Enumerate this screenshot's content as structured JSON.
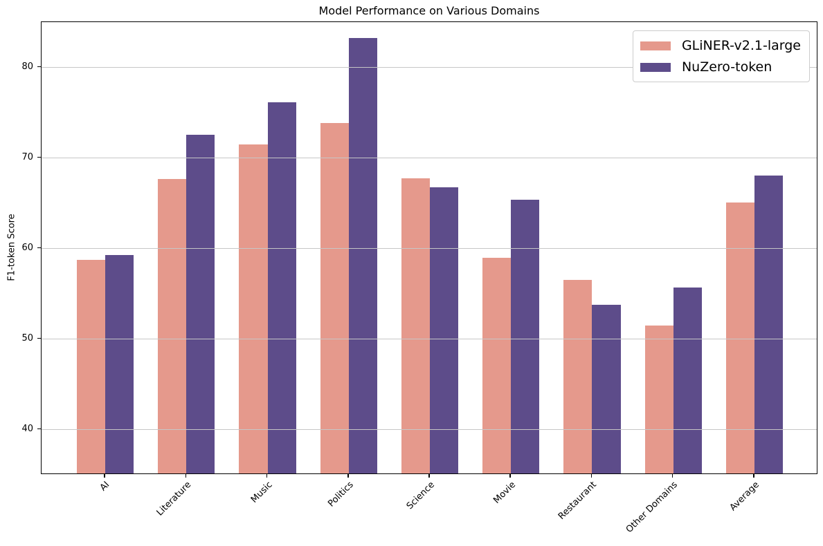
{
  "chart_data": {
    "type": "bar",
    "title": "Model Performance on Various Domains",
    "xlabel": "",
    "ylabel": "F1-token Score",
    "categories": [
      "AI",
      "Literature",
      "Music",
      "Politics",
      "Science",
      "Movie",
      "Restaurant",
      "Other Domains",
      "Average"
    ],
    "series": [
      {
        "name": "GLiNER-v2.1-large",
        "color": "#E5998C",
        "values": [
          58.6,
          67.5,
          71.3,
          73.7,
          67.6,
          58.8,
          56.4,
          51.3,
          64.9
        ]
      },
      {
        "name": "NuZero-token",
        "color": "#5D4C8A",
        "values": [
          59.1,
          72.4,
          76.0,
          83.1,
          66.6,
          65.2,
          53.6,
          55.5,
          67.9
        ]
      }
    ],
    "ylim": [
      35,
      85
    ],
    "yticks": [
      40,
      50,
      60,
      70,
      80
    ],
    "grid": true,
    "grid_axis": "y",
    "grid_above_bars": true,
    "grid_color": "#c6c6c6",
    "legend_position": "upper right",
    "xtick_rotation": 45,
    "bar_width_fraction": 0.35
  }
}
